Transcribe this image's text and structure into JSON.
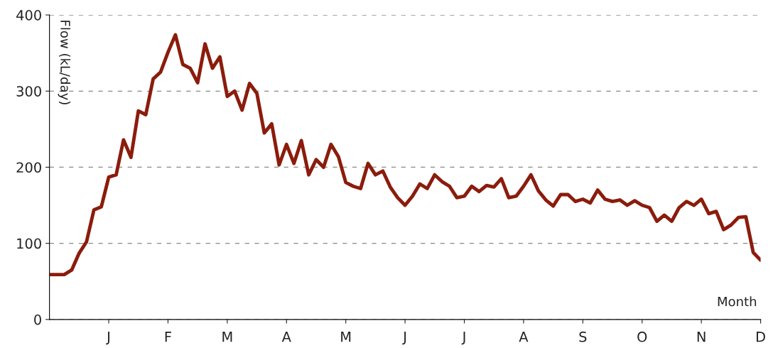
{
  "chart_data": {
    "type": "line",
    "xlabel": "Month",
    "ylabel": "Flow (kL/day)",
    "categories": [
      null,
      null,
      null,
      null,
      null,
      null,
      null,
      null,
      "J",
      null,
      null,
      null,
      null,
      null,
      null,
      null,
      "F",
      null,
      null,
      null,
      null,
      null,
      null,
      null,
      "M",
      null,
      null,
      null,
      null,
      null,
      null,
      null,
      "A",
      null,
      null,
      null,
      null,
      null,
      null,
      null,
      "M",
      null,
      null,
      null,
      null,
      null,
      null,
      null,
      "J",
      null,
      null,
      null,
      null,
      null,
      null,
      null,
      "J",
      null,
      null,
      null,
      null,
      null,
      null,
      null,
      "A",
      null,
      null,
      null,
      null,
      null,
      null,
      null,
      "S",
      null,
      null,
      null,
      null,
      null,
      null,
      null,
      "O",
      null,
      null,
      null,
      null,
      null,
      null,
      null,
      "N",
      null,
      null,
      null,
      null,
      null,
      null,
      null,
      "D"
    ],
    "series": [
      {
        "color": "#8b1c0c",
        "values": [
          59,
          59,
          59,
          65,
          87,
          102,
          144,
          148,
          187,
          190,
          236,
          213,
          274,
          269,
          316,
          325,
          351,
          374,
          335,
          330,
          311,
          362,
          330,
          345,
          293,
          300,
          275,
          310,
          297,
          245,
          257,
          203,
          230,
          205,
          235,
          190,
          210,
          200,
          230,
          214,
          180,
          175,
          172,
          205,
          190,
          195,
          174,
          160,
          150,
          162,
          178,
          172,
          190,
          181,
          175,
          160,
          162,
          175,
          168,
          176,
          174,
          185,
          160,
          162,
          175,
          190,
          169,
          157,
          149,
          164,
          164,
          155,
          158,
          153,
          170,
          158,
          155,
          157,
          150,
          156,
          150,
          147,
          129,
          137,
          129,
          147,
          155,
          150,
          158,
          139,
          142,
          118,
          124,
          134,
          135,
          88,
          78
        ]
      }
    ],
    "ylim": [
      0,
      400
    ],
    "yticks": [
      0,
      100,
      200,
      300,
      400
    ],
    "grid": "y",
    "line_style": "solid",
    "marker": "none"
  }
}
